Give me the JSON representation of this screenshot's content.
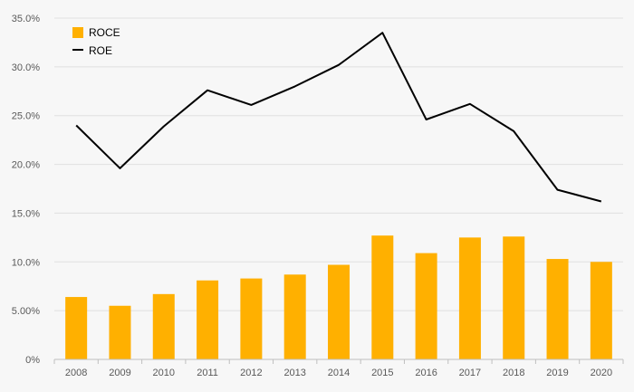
{
  "chart_data": {
    "type": "bar",
    "title": "",
    "xlabel": "",
    "ylabel": "",
    "ylim": [
      0,
      0.35
    ],
    "y_ticks": [
      "0%",
      "5.00%",
      "10.0%",
      "15.0%",
      "20.0%",
      "25.0%",
      "30.0%",
      "35.0%"
    ],
    "grid": true,
    "legend_position": "top-left",
    "categories": [
      "2008",
      "2009",
      "2010",
      "2011",
      "2012",
      "2013",
      "2014",
      "2015",
      "2016",
      "2017",
      "2018",
      "2019",
      "2020"
    ],
    "series": [
      {
        "name": "ROCE",
        "type": "bar",
        "color": "#FFB000",
        "values": [
          0.064,
          0.055,
          0.067,
          0.081,
          0.083,
          0.087,
          0.097,
          0.127,
          0.109,
          0.125,
          0.126,
          0.103,
          0.1
        ]
      },
      {
        "name": "ROE",
        "type": "line",
        "color": "#000000",
        "values": [
          0.24,
          0.196,
          0.239,
          0.276,
          0.261,
          0.28,
          0.302,
          0.335,
          0.246,
          0.262,
          0.234,
          0.174,
          0.162
        ]
      }
    ]
  }
}
